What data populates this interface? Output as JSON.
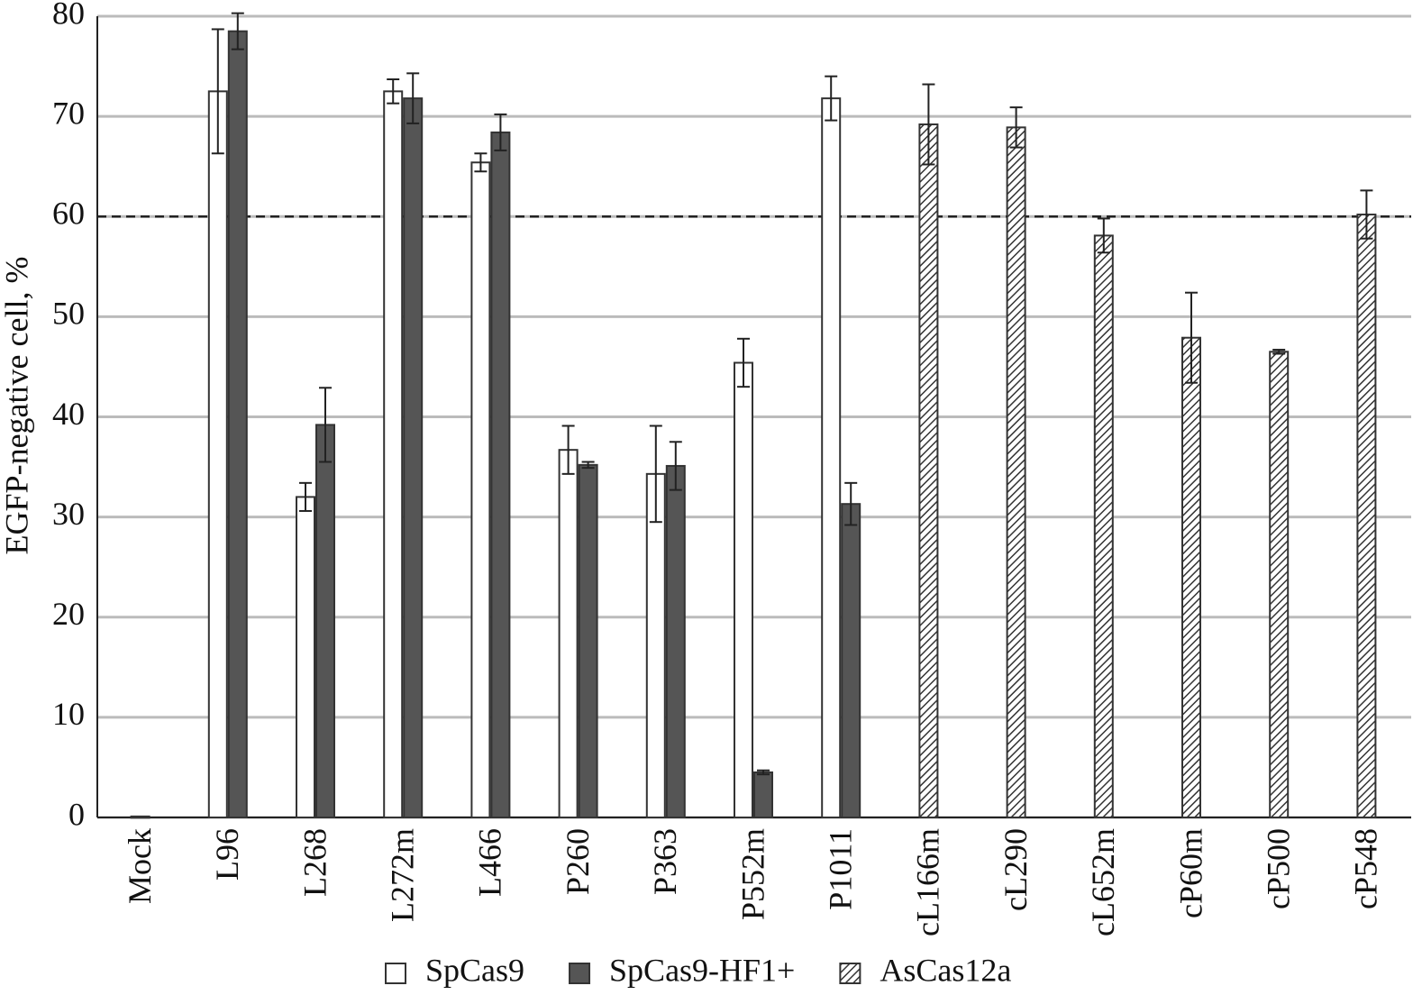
{
  "chart_data": {
    "type": "bar",
    "y_label": "EGFP-negative cell, %",
    "categories": [
      "Mock",
      "L96",
      "L268",
      "L272m",
      "L466",
      "P260",
      "P363",
      "P552m",
      "P1011",
      "cL166m",
      "cL290",
      "cL652m",
      "cP60m",
      "cP500",
      "cP548"
    ],
    "series": [
      {
        "name": "SpCas9",
        "color": "#ffffff",
        "values": [
          0.1,
          72.5,
          32,
          72.5,
          65.4,
          36.7,
          34.3,
          45.4,
          71.8,
          null,
          null,
          null,
          null,
          null,
          null
        ],
        "errors": [
          null,
          6.2,
          1.4,
          1.2,
          0.9,
          2.4,
          4.8,
          2.4,
          2.2,
          null,
          null,
          null,
          null,
          null,
          null
        ]
      },
      {
        "name": "SpCas9-HF1+",
        "color": "#555555",
        "values": [
          null,
          78.5,
          39.2,
          71.8,
          68.4,
          35.2,
          35.1,
          4.5,
          31.3,
          null,
          null,
          null,
          null,
          null,
          null
        ],
        "errors": [
          null,
          1.8,
          3.7,
          2.5,
          1.8,
          0.3,
          2.4,
          0.2,
          2.1,
          null,
          null,
          null,
          null,
          null,
          null
        ]
      },
      {
        "name": "AsCas12a",
        "color": "#333333",
        "pattern": "hatch",
        "values": [
          null,
          null,
          null,
          null,
          null,
          null,
          null,
          null,
          null,
          69.2,
          68.9,
          58.1,
          47.9,
          46.5,
          60.2
        ],
        "errors": [
          null,
          null,
          null,
          null,
          null,
          null,
          null,
          null,
          null,
          4,
          2,
          1.7,
          4.5,
          0.2,
          2.4
        ]
      }
    ],
    "ylim": [
      0,
      80
    ],
    "yticks": [
      0,
      10,
      20,
      30,
      40,
      50,
      60,
      70,
      80
    ],
    "grid": true,
    "reference_line": 60,
    "legend": "bottom"
  }
}
